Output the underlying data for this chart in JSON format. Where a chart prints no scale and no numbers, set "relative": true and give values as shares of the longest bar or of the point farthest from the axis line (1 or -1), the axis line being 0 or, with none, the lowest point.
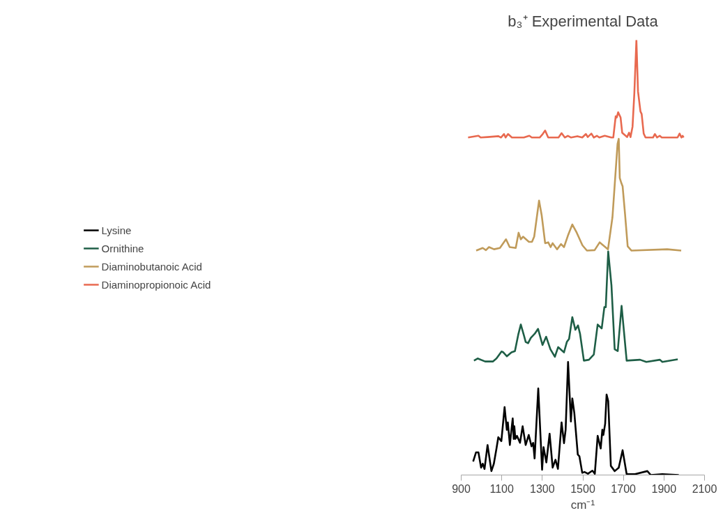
{
  "chart_data": {
    "type": "line",
    "title": "b₃⁺ Experimental Data",
    "xlabel": "cm⁻¹",
    "relative": true,
    "xlim": [
      900,
      2100
    ],
    "xticks": [
      900,
      1100,
      1300,
      1500,
      1700,
      1900,
      2100
    ],
    "grid": false,
    "legend": "left",
    "marker": "none",
    "line_style": "solid",
    "series": [
      {
        "name": "Lysine",
        "color": "#000000",
        "x": [
          959,
          973,
          985,
          998,
          1006,
          1015,
          1030,
          1049,
          1061,
          1074,
          1083,
          1098,
          1114,
          1125,
          1130,
          1140,
          1145,
          1154,
          1159,
          1162,
          1167,
          1175,
          1190,
          1203,
          1218,
          1233,
          1247,
          1255,
          1262,
          1280,
          1299,
          1306,
          1320,
          1336,
          1351,
          1365,
          1377,
          1395,
          1407,
          1415,
          1427,
          1441,
          1448,
          1458,
          1475,
          1483,
          1497,
          1508,
          1525,
          1547,
          1559,
          1573,
          1588,
          1596,
          1601,
          1610,
          1617,
          1625,
          1638,
          1657,
          1677,
          1696,
          1716,
          1757,
          1818,
          1835,
          1892,
          1973
        ],
        "values": [
          0.031,
          0.052,
          0.052,
          0.017,
          0.026,
          0.014,
          0.069,
          0.009,
          0.026,
          0.061,
          0.087,
          0.078,
          0.156,
          0.104,
          0.121,
          0.069,
          0.092,
          0.13,
          0.083,
          0.112,
          0.083,
          0.09,
          0.074,
          0.112,
          0.069,
          0.092,
          0.066,
          0.074,
          0.038,
          0.199,
          0.012,
          0.064,
          0.029,
          0.095,
          0.017,
          0.035,
          0.014,
          0.121,
          0.073,
          0.104,
          0.26,
          0.123,
          0.176,
          0.142,
          0.047,
          0.043,
          0.005,
          0.007,
          0.003,
          0.01,
          0.003,
          0.09,
          0.061,
          0.104,
          0.092,
          0.118,
          0.185,
          0.17,
          0.021,
          0.009,
          0.017,
          0.057,
          0.002,
          0.002,
          0.009,
          0.0,
          0.002,
          0.0
        ]
      },
      {
        "name": "Ornithine",
        "color": "#1e5e46",
        "x": [
          963,
          981,
          1018,
          1056,
          1074,
          1099,
          1108,
          1125,
          1148,
          1165,
          1182,
          1194,
          1210,
          1218,
          1230,
          1243,
          1263,
          1279,
          1301,
          1319,
          1340,
          1362,
          1378,
          1407,
          1421,
          1432,
          1448,
          1463,
          1476,
          1486,
          1505,
          1530,
          1554,
          1573,
          1593,
          1606,
          1613,
          1625,
          1641,
          1657,
          1672,
          1691,
          1716,
          1782,
          1813,
          1880,
          1892,
          1968
        ],
        "values": [
          0.263,
          0.268,
          0.261,
          0.261,
          0.268,
          0.284,
          0.282,
          0.273,
          0.282,
          0.285,
          0.324,
          0.346,
          0.32,
          0.306,
          0.303,
          0.315,
          0.325,
          0.336,
          0.299,
          0.318,
          0.289,
          0.272,
          0.294,
          0.282,
          0.306,
          0.313,
          0.363,
          0.334,
          0.344,
          0.325,
          0.263,
          0.265,
          0.277,
          0.346,
          0.337,
          0.386,
          0.386,
          0.514,
          0.436,
          0.289,
          0.285,
          0.389,
          0.263,
          0.265,
          0.26,
          0.265,
          0.26,
          0.266
        ]
      },
      {
        "name": "Diaminobutanoic Acid",
        "color": "#c09b5a",
        "x": [
          974,
          1006,
          1022,
          1037,
          1062,
          1091,
          1121,
          1139,
          1169,
          1183,
          1194,
          1205,
          1234,
          1249,
          1260,
          1284,
          1297,
          1314,
          1329,
          1341,
          1351,
          1373,
          1392,
          1407,
          1426,
          1448,
          1470,
          1498,
          1520,
          1558,
          1583,
          1624,
          1646,
          1660,
          1671,
          1677,
          1682,
          1690,
          1696,
          1708,
          1721,
          1740,
          1916,
          1985
        ],
        "values": [
          0.516,
          0.522,
          0.517,
          0.524,
          0.519,
          0.522,
          0.542,
          0.524,
          0.522,
          0.557,
          0.542,
          0.548,
          0.536,
          0.536,
          0.548,
          0.631,
          0.597,
          0.533,
          0.535,
          0.524,
          0.533,
          0.519,
          0.531,
          0.524,
          0.55,
          0.576,
          0.557,
          0.528,
          0.516,
          0.517,
          0.535,
          0.519,
          0.593,
          0.687,
          0.761,
          0.773,
          0.683,
          0.671,
          0.664,
          0.6,
          0.526,
          0.516,
          0.519,
          0.516
        ]
      },
      {
        "name": "Diaminopropionoic Acid",
        "color": "#e8694f",
        "x": [
          934,
          985,
          996,
          1030,
          1084,
          1096,
          1111,
          1119,
          1131,
          1150,
          1209,
          1236,
          1248,
          1287,
          1302,
          1314,
          1329,
          1380,
          1395,
          1411,
          1426,
          1442,
          1473,
          1497,
          1515,
          1524,
          1542,
          1554,
          1569,
          1581,
          1608,
          1640,
          1650,
          1662,
          1667,
          1674,
          1686,
          1694,
          1706,
          1718,
          1728,
          1735,
          1745,
          1754,
          1764,
          1772,
          1784,
          1790,
          1800,
          1809,
          1846,
          1855,
          1866,
          1879,
          1889,
          1967,
          1977,
          1986,
          1992,
          1997
        ],
        "values": [
          0.776,
          0.78,
          0.776,
          0.777,
          0.779,
          0.776,
          0.784,
          0.776,
          0.784,
          0.776,
          0.776,
          0.78,
          0.776,
          0.776,
          0.784,
          0.792,
          0.776,
          0.776,
          0.786,
          0.776,
          0.78,
          0.776,
          0.779,
          0.776,
          0.784,
          0.777,
          0.785,
          0.776,
          0.78,
          0.776,
          0.78,
          0.776,
          0.776,
          0.825,
          0.822,
          0.834,
          0.822,
          0.787,
          0.782,
          0.777,
          0.787,
          0.777,
          0.801,
          0.879,
          1.0,
          0.882,
          0.836,
          0.83,
          0.785,
          0.776,
          0.776,
          0.784,
          0.776,
          0.78,
          0.776,
          0.776,
          0.785,
          0.776,
          0.78,
          0.776
        ]
      }
    ]
  }
}
